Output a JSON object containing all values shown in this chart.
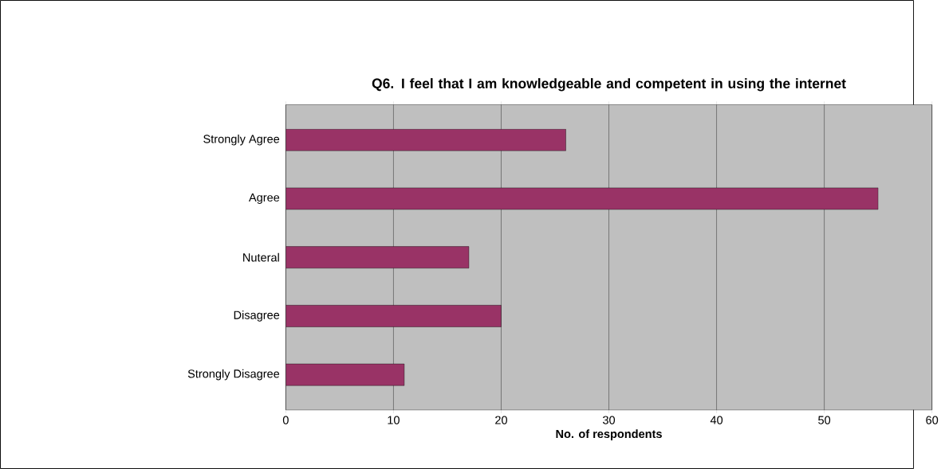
{
  "chart_data": {
    "type": "bar",
    "orientation": "horizontal",
    "title": "Q6.  I feel that I am knowledgeable and competent in using the internet",
    "xlabel": "No. of respondents",
    "categories": [
      "Strongly Agree",
      "Agree",
      "Nuteral",
      "Disagree",
      "Strongly Disagree"
    ],
    "values": [
      26,
      55,
      17,
      20,
      11
    ],
    "color": "#993366",
    "xlim": [
      0,
      60
    ],
    "xticks": [
      0,
      10,
      20,
      30,
      40,
      50,
      60
    ],
    "grid": "x"
  }
}
